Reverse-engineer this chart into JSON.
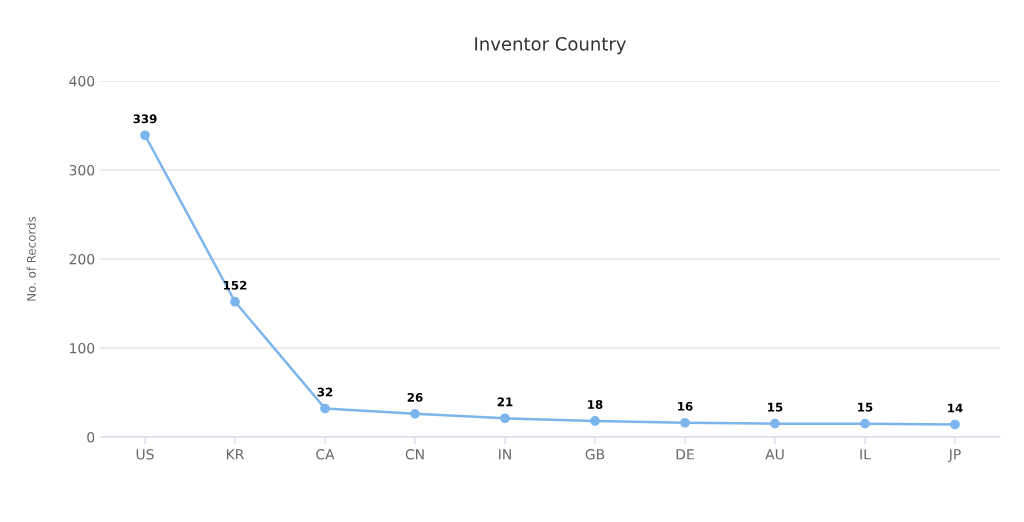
{
  "chart_data": {
    "type": "line",
    "title": "Inventor Country",
    "ylabel": "No. of Records",
    "categories": [
      "US",
      "KR",
      "CA",
      "CN",
      "IN",
      "GB",
      "DE",
      "AU",
      "IL",
      "JP"
    ],
    "series": [
      {
        "color": "#7cb5ec",
        "values": [
          339,
          152,
          32,
          26,
          21,
          18,
          16,
          15,
          15,
          14
        ]
      }
    ],
    "ylim": [
      0,
      400
    ],
    "yticks": [
      0,
      100,
      200,
      300,
      400
    ],
    "grid": "y",
    "marker": "circle",
    "line_style": "solid",
    "data_labels": true,
    "legend": false
  }
}
